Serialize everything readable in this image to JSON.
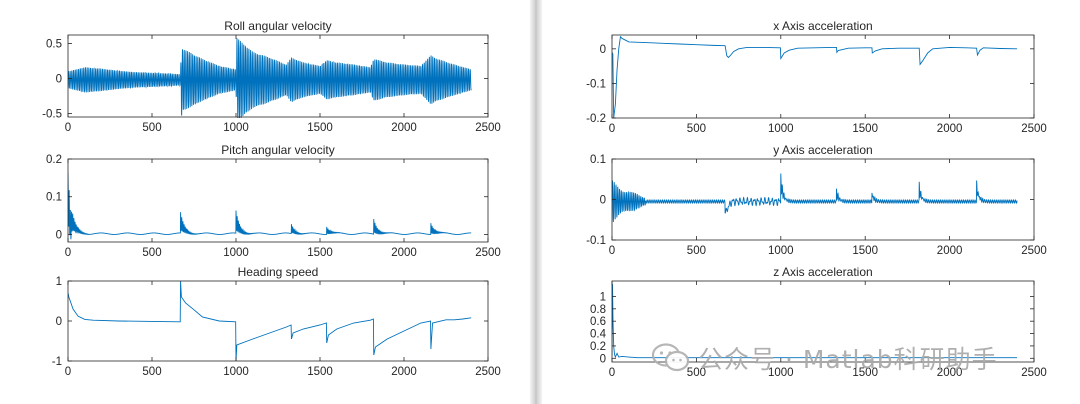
{
  "chart_data": [
    {
      "type": "line",
      "title": "Roll angular velocity",
      "xlim": [
        0,
        2500
      ],
      "ylim": [
        -0.55,
        0.62
      ],
      "xticks": [
        0,
        500,
        1000,
        1500,
        2000,
        2500
      ],
      "yticks": [
        -0.5,
        0,
        0.5
      ],
      "ytick_labels": [
        "-0.5",
        "0",
        "0.5"
      ],
      "series": [
        {
          "color": "#0072BD",
          "description": "oscillating signal, 0-2400 samples",
          "x": [
            0,
            50,
            100,
            200,
            300,
            400,
            500,
            600,
            670,
            675,
            680,
            800,
            900,
            1000,
            1005,
            1100,
            1200,
            1300,
            1330,
            1400,
            1500,
            1540,
            1600,
            1700,
            1800,
            1820,
            1900,
            2000,
            2100,
            2160,
            2200,
            2300,
            2400
          ],
          "amplitude": [
            0.12,
            0.15,
            0.18,
            0.16,
            0.13,
            0.11,
            0.1,
            0.09,
            0.08,
            0.55,
            0.45,
            0.3,
            0.2,
            0.15,
            0.6,
            0.4,
            0.32,
            0.22,
            0.32,
            0.25,
            0.2,
            0.28,
            0.25,
            0.22,
            0.18,
            0.3,
            0.25,
            0.22,
            0.2,
            0.35,
            0.3,
            0.22,
            0.15
          ],
          "center": -0.02
        }
      ]
    },
    {
      "type": "line",
      "title": "Pitch angular velocity",
      "xlim": [
        0,
        2500
      ],
      "ylim": [
        -0.02,
        0.2
      ],
      "xticks": [
        0,
        500,
        1000,
        1500,
        2000,
        2500
      ],
      "yticks": [
        0,
        0.1,
        0.2
      ],
      "ytick_labels": [
        "0",
        "0.1",
        "0.2"
      ],
      "series": [
        {
          "color": "#0072BD",
          "events": [
            {
              "x": 0,
              "peak": 0.16
            },
            {
              "x": 670,
              "peak": 0.055
            },
            {
              "x": 1000,
              "peak": 0.06
            },
            {
              "x": 1330,
              "peak": 0.025
            },
            {
              "x": 1540,
              "peak": 0.02
            },
            {
              "x": 1820,
              "peak": 0.04
            },
            {
              "x": 2160,
              "peak": 0.03
            }
          ],
          "baseline": 0.002
        }
      ]
    },
    {
      "type": "line",
      "title": "Heading speed",
      "xlim": [
        0,
        2500
      ],
      "ylim": [
        -1,
        1
      ],
      "xticks": [
        0,
        500,
        1000,
        1500,
        2000,
        2500
      ],
      "yticks": [
        -1,
        0,
        1
      ],
      "ytick_labels": [
        "-1",
        "0",
        "1"
      ],
      "series": [
        {
          "color": "#0072BD",
          "x": [
            0,
            5,
            30,
            60,
            100,
            150,
            300,
            500,
            668,
            670,
            675,
            700,
            750,
            800,
            900,
            998,
            1000,
            1005,
            1100,
            1200,
            1300,
            1328,
            1330,
            1340,
            1400,
            1500,
            1538,
            1540,
            1550,
            1600,
            1700,
            1800,
            1818,
            1820,
            1830,
            1900,
            2000,
            2100,
            2158,
            2160,
            2170,
            2250,
            2300,
            2350,
            2400
          ],
          "y": [
            0.7,
            0.6,
            0.3,
            0.12,
            0.04,
            0.02,
            0.0,
            -0.01,
            -0.02,
            1.0,
            0.6,
            0.45,
            0.28,
            0.1,
            0.0,
            -0.02,
            -1.0,
            -0.6,
            -0.45,
            -0.3,
            -0.15,
            -0.1,
            -0.45,
            -0.3,
            -0.2,
            -0.1,
            -0.05,
            -0.55,
            -0.35,
            -0.2,
            -0.05,
            0.02,
            0.05,
            -0.85,
            -0.65,
            -0.45,
            -0.25,
            -0.05,
            0.0,
            -0.7,
            -0.05,
            0.03,
            0.03,
            0.05,
            0.08
          ]
        }
      ]
    },
    {
      "type": "line",
      "title": "x  Axis acceleration",
      "xlim": [
        0,
        2500
      ],
      "ylim": [
        -0.2,
        0.04
      ],
      "xticks": [
        0,
        500,
        1000,
        1500,
        2000,
        2500
      ],
      "yticks": [
        -0.2,
        -0.1,
        0
      ],
      "ytick_labels": [
        "-0.2",
        "-0.1",
        "0"
      ],
      "series": [
        {
          "color": "#0072BD",
          "x": [
            0,
            5,
            10,
            20,
            30,
            40,
            50,
            60,
            80,
            100,
            200,
            300,
            400,
            500,
            600,
            670,
            680,
            690,
            700,
            720,
            750,
            800,
            900,
            998,
            1000,
            1010,
            1020,
            1050,
            1100,
            1200,
            1300,
            1330,
            1332,
            1340,
            1400,
            1500,
            1540,
            1542,
            1560,
            1600,
            1700,
            1800,
            1820,
            1825,
            1840,
            1870,
            1900,
            2000,
            2100,
            2160,
            2165,
            2180,
            2200,
            2300,
            2400
          ],
          "y": [
            -0.01,
            -0.015,
            -0.2,
            -0.16,
            -0.06,
            0.0,
            0.035,
            0.03,
            0.025,
            0.02,
            0.018,
            0.016,
            0.014,
            0.012,
            0.01,
            0.009,
            -0.02,
            -0.025,
            -0.02,
            -0.008,
            0.0,
            0.004,
            0.004,
            0.003,
            -0.028,
            -0.02,
            -0.012,
            -0.004,
            0.002,
            0.003,
            0.004,
            0.004,
            -0.01,
            -0.005,
            0.002,
            0.003,
            0.003,
            -0.012,
            -0.006,
            0.0,
            0.002,
            0.002,
            0.002,
            -0.045,
            -0.035,
            -0.012,
            0.0,
            0.004,
            0.003,
            0.002,
            -0.018,
            -0.004,
            0.003,
            0.001,
            0.0
          ]
        }
      ]
    },
    {
      "type": "line",
      "title": "y  Axis acceleration",
      "xlim": [
        0,
        2500
      ],
      "ylim": [
        -0.1,
        0.1
      ],
      "xticks": [
        0,
        500,
        1000,
        1500,
        2000,
        2500
      ],
      "yticks": [
        -0.1,
        0,
        0.1
      ],
      "ytick_labels": [
        "-0.1",
        "0",
        "0.1"
      ],
      "series": [
        {
          "color": "#0072BD",
          "events": [
            {
              "x": 670,
              "shape": "dip",
              "amp": -0.025
            },
            {
              "x": 1000,
              "amp": 0.07
            },
            {
              "x": 1330,
              "amp": 0.03
            },
            {
              "x": 1540,
              "amp": 0.025
            },
            {
              "x": 1820,
              "amp": 0.045
            },
            {
              "x": 2160,
              "amp": 0.05
            }
          ]
        }
      ]
    },
    {
      "type": "line",
      "title": "z  Axis acceleration",
      "xlim": [
        0,
        2500
      ],
      "ylim": [
        -0.06,
        1.25
      ],
      "xticks": [
        0,
        500,
        1000,
        1500,
        2000,
        2500
      ],
      "yticks": [
        0,
        0.2,
        0.4,
        0.6,
        0.8,
        1
      ],
      "ytick_labels": [
        "0",
        "0.2",
        "0.4",
        "0.6",
        "0.8",
        "1"
      ],
      "series": [
        {
          "color": "#0072BD",
          "x": [
            0,
            3,
            6,
            10,
            15,
            20,
            30,
            40,
            60,
            100,
            150,
            200,
            400,
            600,
            800,
            1000,
            1200,
            1400,
            1600,
            1800,
            2000,
            2200,
            2400
          ],
          "y": [
            0.05,
            1.2,
            0.6,
            0.2,
            0.06,
            0.02,
            0.08,
            0.02,
            0.03,
            0.02,
            0.01,
            0.01,
            0.01,
            0.01,
            0.01,
            0.01,
            0.01,
            0.01,
            0.01,
            0.01,
            0.01,
            0.01,
            0.01
          ]
        }
      ]
    }
  ],
  "watermark": {
    "text": "公众号 · Matlab科研助手",
    "icon": "wechat-icon"
  },
  "colors": {
    "line": "#0072BD",
    "axis": "#262626",
    "watermark": "#a9a9a9"
  }
}
